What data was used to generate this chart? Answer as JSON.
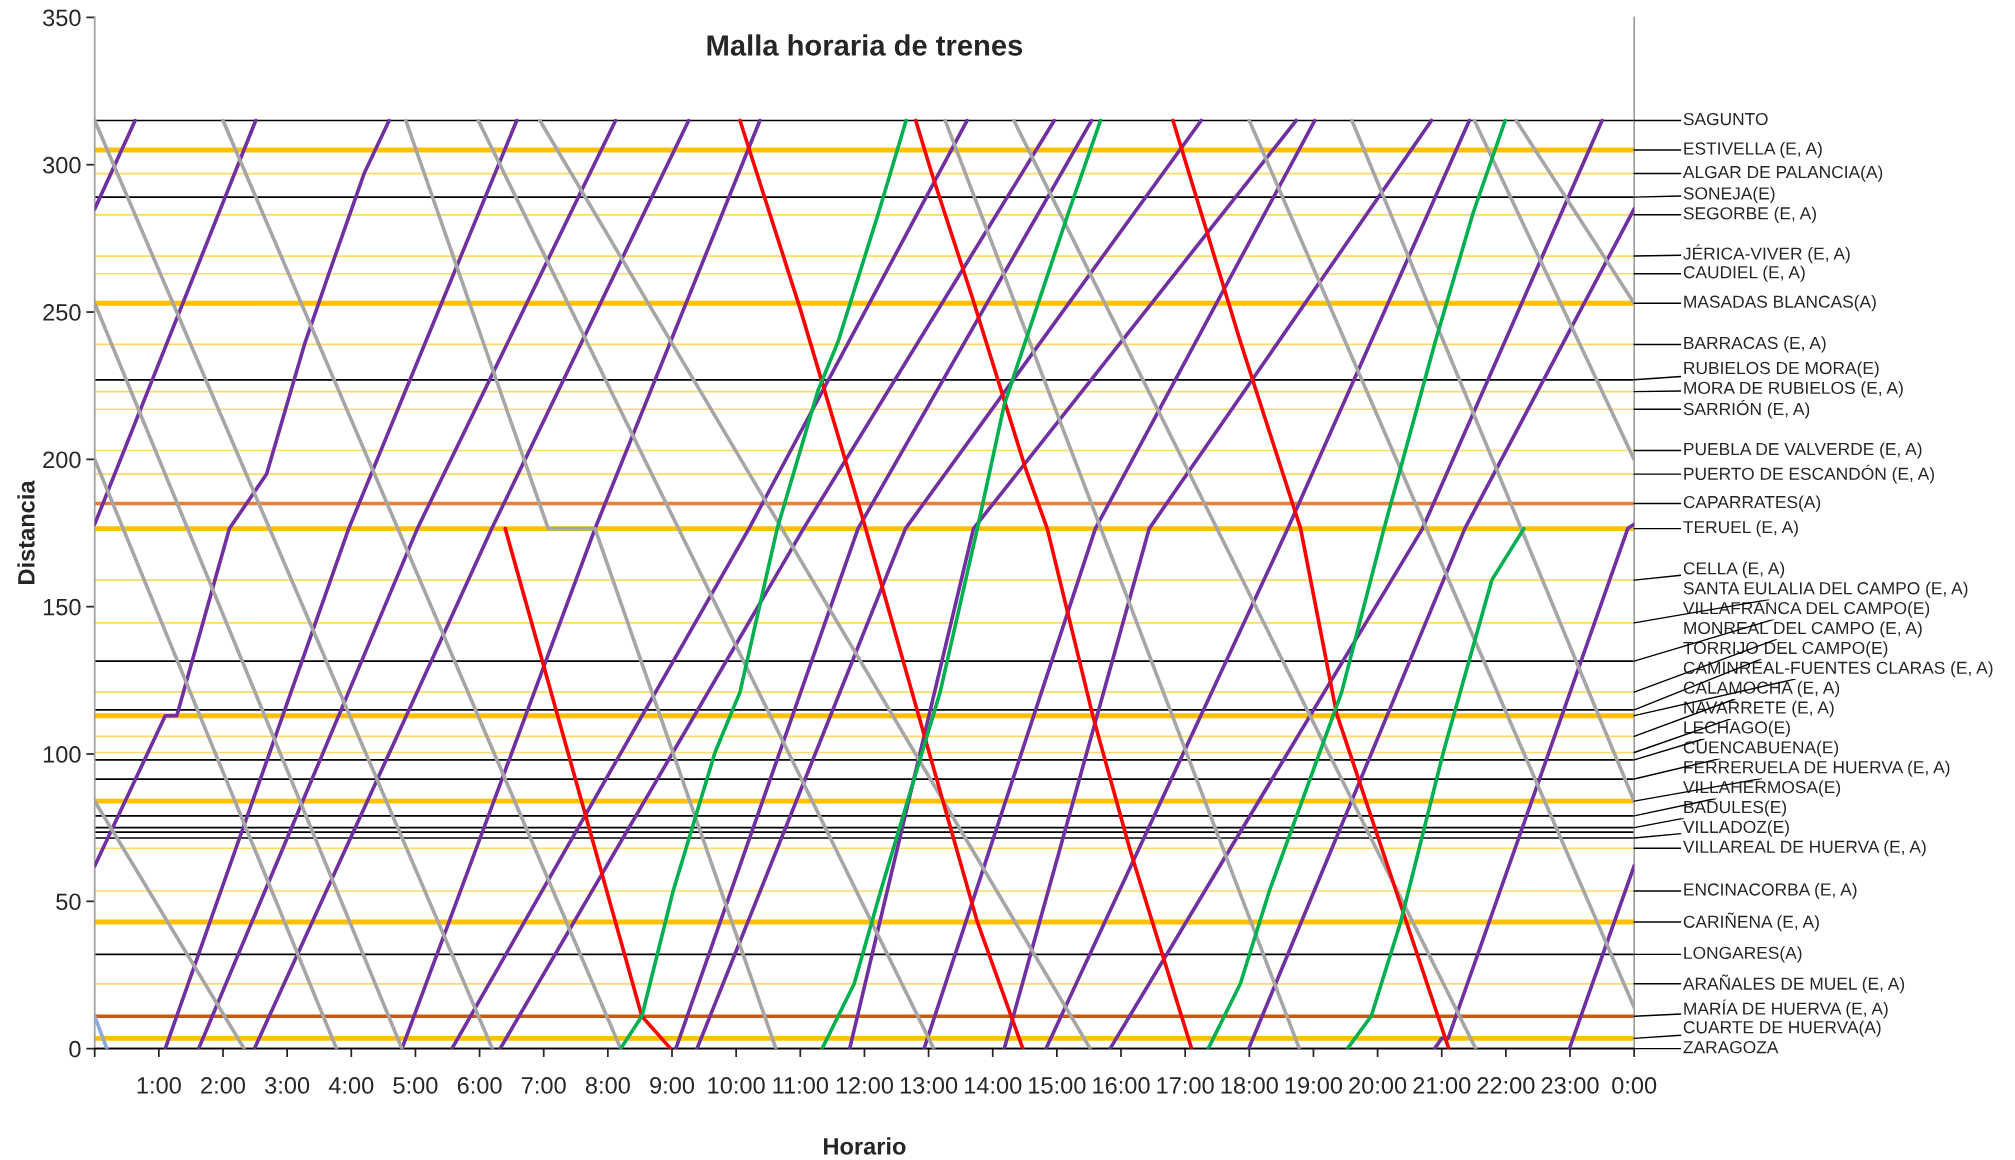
{
  "chart_data": {
    "type": "line",
    "title": "Malla horaria de trenes",
    "xlabel": "Horario",
    "ylabel": "Distancia",
    "xlim": [
      0,
      24
    ],
    "ylim": [
      0,
      350
    ],
    "xticks": [
      {
        "value": 0,
        "label": null
      },
      {
        "value": 1,
        "label": "1:00"
      },
      {
        "value": 2,
        "label": "2:00"
      },
      {
        "value": 3,
        "label": "3:00"
      },
      {
        "value": 4,
        "label": "4:00"
      },
      {
        "value": 5,
        "label": "5:00"
      },
      {
        "value": 6,
        "label": "6:00"
      },
      {
        "value": 7,
        "label": "7:00"
      },
      {
        "value": 8,
        "label": "8:00"
      },
      {
        "value": 9,
        "label": "9:00"
      },
      {
        "value": 10,
        "label": "10:00"
      },
      {
        "value": 11,
        "label": "11:00"
      },
      {
        "value": 12,
        "label": "12:00"
      },
      {
        "value": 13,
        "label": "13:00"
      },
      {
        "value": 14,
        "label": "14:00"
      },
      {
        "value": 15,
        "label": "15:00"
      },
      {
        "value": 16,
        "label": "16:00"
      },
      {
        "value": 17,
        "label": "17:00"
      },
      {
        "value": 18,
        "label": "18:00"
      },
      {
        "value": 19,
        "label": "19:00"
      },
      {
        "value": 20,
        "label": "20:00"
      },
      {
        "value": 21,
        "label": "21:00"
      },
      {
        "value": 22,
        "label": "22:00"
      },
      {
        "value": 23,
        "label": "23:00"
      },
      {
        "value": 24,
        "label": "0:00"
      }
    ],
    "yticks": [
      0,
      50,
      100,
      150,
      200,
      250,
      300,
      350
    ],
    "grid": false,
    "legend": false,
    "marker": "none",
    "line_style": "solid",
    "series": [
      {
        "color": "#7030a0",
        "x": [
          0,
          0.63
        ],
        "values": [
          285,
          315
        ]
      },
      {
        "color": "#7030a0",
        "x": [
          0,
          2.51
        ],
        "values": [
          178,
          315
        ]
      },
      {
        "color": "#7030a0",
        "x": [
          0,
          1.1,
          1.28,
          2.1,
          2.68,
          3.27,
          3.65,
          4.2,
          4.59
        ],
        "values": [
          62,
          113,
          113,
          176.5,
          195,
          239,
          263,
          297,
          315
        ]
      },
      {
        "color": "#7030a0",
        "x": [
          1.1,
          3.96,
          6.58
        ],
        "values": [
          0,
          176.5,
          315
        ]
      },
      {
        "color": "#7030a0",
        "x": [
          1.62,
          5.03,
          8.12
        ],
        "values": [
          0,
          176.5,
          315
        ]
      },
      {
        "color": "#7030a0",
        "x": [
          2.49,
          6.19,
          9.26
        ],
        "values": [
          0,
          176.5,
          315
        ]
      },
      {
        "color": "#7030a0",
        "x": [
          4.79,
          7.8,
          10.37
        ],
        "values": [
          0,
          176.5,
          315
        ]
      },
      {
        "color": "#7030a0",
        "x": [
          5.57,
          10.2,
          13.6
        ],
        "values": [
          0,
          176.5,
          315
        ]
      },
      {
        "color": "#7030a0",
        "x": [
          6.32,
          11.05,
          14.96
        ],
        "values": [
          0,
          176.5,
          315
        ]
      },
      {
        "color": "#7030a0",
        "x": [
          9.06,
          11.9,
          15.54
        ],
        "values": [
          0,
          176.5,
          315
        ]
      },
      {
        "color": "#7030a0",
        "x": [
          9.39,
          12.64,
          17.25
        ],
        "values": [
          0,
          176.5,
          315
        ]
      },
      {
        "color": "#7030a0",
        "x": [
          11.77,
          13.7,
          18.73
        ],
        "values": [
          0,
          176.5,
          315
        ]
      },
      {
        "color": "#7030a0",
        "x": [
          12.93,
          15.6,
          19.02
        ],
        "values": [
          0,
          176.5,
          315
        ]
      },
      {
        "color": "#7030a0",
        "x": [
          14.18,
          16.44,
          20.84
        ],
        "values": [
          0,
          176.5,
          315
        ]
      },
      {
        "color": "#7030a0",
        "x": [
          14.83,
          18.6,
          21.43
        ],
        "values": [
          0,
          176.5,
          315
        ]
      },
      {
        "color": "#7030a0",
        "x": [
          15.83,
          20.7,
          23.5
        ],
        "values": [
          0,
          176.5,
          315
        ]
      },
      {
        "color": "#7030a0",
        "x": [
          17.99,
          21.36,
          24
        ],
        "values": [
          0,
          176.5,
          285
        ]
      },
      {
        "color": "#7030a0",
        "x": [
          20.89,
          21.0,
          21.1,
          23.9,
          24
        ],
        "values": [
          0,
          3.5,
          3.5,
          176.5,
          178
        ]
      },
      {
        "color": "#7030a0",
        "x": [
          22.99,
          24
        ],
        "values": [
          0,
          62
        ]
      },
      {
        "color": "#a6a6a6",
        "x": [
          0,
          2.33
        ],
        "values": [
          84,
          0
        ]
      },
      {
        "color": "#a6a6a6",
        "x": [
          0,
          3.77
        ],
        "values": [
          200,
          0
        ]
      },
      {
        "color": "#a6a6a6",
        "x": [
          0,
          4.79
        ],
        "values": [
          253,
          0
        ]
      },
      {
        "color": "#a6a6a6",
        "x": [
          0,
          6.2
        ],
        "values": [
          315,
          0
        ]
      },
      {
        "color": "#a6a6a6",
        "x": [
          2.0,
          8.2
        ],
        "values": [
          315,
          0
        ]
      },
      {
        "color": "#a6a6a6",
        "x": [
          4.85,
          7.07,
          7.8,
          10.62
        ],
        "values": [
          315,
          176.5,
          176.5,
          0
        ]
      },
      {
        "color": "#a6a6a6",
        "x": [
          5.98,
          13.08
        ],
        "values": [
          315,
          0
        ]
      },
      {
        "color": "#a6a6a6",
        "x": [
          6.94,
          15.52
        ],
        "values": [
          315,
          0
        ]
      },
      {
        "color": "#a6a6a6",
        "x": [
          13.26,
          18.78
        ],
        "values": [
          315,
          0
        ]
      },
      {
        "color": "#a6a6a6",
        "x": [
          14.33,
          21.53
        ],
        "values": [
          315,
          0
        ]
      },
      {
        "color": "#a6a6a6",
        "x": [
          18.0,
          24
        ],
        "values": [
          315,
          14
        ]
      },
      {
        "color": "#a6a6a6",
        "x": [
          19.6,
          24
        ],
        "values": [
          315,
          84
        ]
      },
      {
        "color": "#a6a6a6",
        "x": [
          21.51,
          24
        ],
        "values": [
          315,
          200
        ]
      },
      {
        "color": "#a6a6a6",
        "x": [
          22.16,
          24
        ],
        "values": [
          315,
          253
        ]
      },
      {
        "color": "#8eaadb",
        "x": [
          0,
          0.19
        ],
        "values": [
          11,
          0
        ]
      },
      {
        "color": "#ff0000",
        "x": [
          6.4,
          8.53,
          8.98
        ],
        "values": [
          176.5,
          11,
          0
        ]
      },
      {
        "color": "#ff0000",
        "x": [
          10.06,
          11.0,
          12.0,
          12.93,
          13.76,
          14.47
        ],
        "values": [
          315,
          251,
          178,
          106.5,
          43,
          0
        ]
      },
      {
        "color": "#ff0000",
        "x": [
          12.8,
          13.05,
          13.68,
          14.51,
          14.85,
          15.56,
          16.14,
          17.1
        ],
        "values": [
          315,
          297,
          255,
          197,
          176.5,
          113,
          67.5,
          0
        ]
      },
      {
        "color": "#ff0000",
        "x": [
          16.81,
          17.86,
          18.8,
          19.36,
          20.28,
          21.11
        ],
        "values": [
          315,
          240,
          176.5,
          113.8,
          54,
          0
        ]
      },
      {
        "color": "#00b050",
        "x": [
          8.2,
          8.53,
          9.02,
          9.67,
          10.06,
          10.64,
          11.28,
          11.59,
          12.22,
          12.65
        ],
        "values": [
          0,
          11,
          53.7,
          100.5,
          121,
          176.5,
          223.6,
          240,
          283.7,
          315
        ]
      },
      {
        "color": "#00b050",
        "x": [
          11.34,
          11.84,
          12.26,
          13.18,
          13.76,
          14.18,
          15.18,
          15.68
        ],
        "values": [
          0,
          22,
          54,
          121,
          176.5,
          218.6,
          283.7,
          315
        ]
      },
      {
        "color": "#00b050",
        "x": [
          17.36,
          17.86,
          18.32,
          19.44,
          20.1,
          20.9,
          21.49,
          21.99
        ],
        "values": [
          0,
          22,
          54,
          121,
          176.5,
          240,
          283.7,
          315
        ]
      },
      {
        "color": "#00b050",
        "x": [
          19.53,
          19.9,
          20.36,
          21.03,
          21.78,
          22.28
        ],
        "values": [
          0,
          11,
          43,
          101,
          159,
          176.5
        ]
      }
    ],
    "ref_lines": [
      {
        "axis": "y",
        "value": 315,
        "label": "SAGUNTO",
        "color": "#000000"
      },
      {
        "axis": "y",
        "value": 305,
        "label": "ESTIVELLA (E, A)",
        "color": "#ffc000"
      },
      {
        "axis": "y",
        "value": 297,
        "label": "ALGAR DE PALANCIA(A)",
        "color": "#ffd966"
      },
      {
        "axis": "y",
        "value": 289,
        "label": "SONEJA(E)",
        "color": "#000000"
      },
      {
        "axis": "y",
        "value": 283,
        "label": "SEGORBE (E, A)",
        "color": "#ffd966"
      },
      {
        "axis": "y",
        "value": 269,
        "label": "JÉRICA-VIVER (E, A)",
        "color": "#ffd966"
      },
      {
        "axis": "y",
        "value": 263,
        "label": "CAUDIEL (E, A)",
        "color": "#ffd966"
      },
      {
        "axis": "y",
        "value": 253,
        "label": "MASADAS BLANCAS(A)",
        "color": "#ffc000"
      },
      {
        "axis": "y",
        "value": 239,
        "label": "BARRACAS (E, A)",
        "color": "#ffd966"
      },
      {
        "axis": "y",
        "value": 227,
        "label": "RUBIELOS DE MORA(E)",
        "color": "#000000"
      },
      {
        "axis": "y",
        "value": 223,
        "label": "MORA DE RUBIELOS (E, A)",
        "color": "#ffd966"
      },
      {
        "axis": "y",
        "value": 217,
        "label": "SARRIÓN (E, A)",
        "color": "#ffd966"
      },
      {
        "axis": "y",
        "value": 203,
        "label": "PUEBLA DE VALVERDE (E, A)",
        "color": "#ffd966"
      },
      {
        "axis": "y",
        "value": 195,
        "label": "PUERTO DE ESCANDÓN (E, A)",
        "color": "#ffd966"
      },
      {
        "axis": "y",
        "value": 185,
        "label": "CAPARRATES(A)",
        "color": "#ed7d31"
      },
      {
        "axis": "y",
        "value": 176.5,
        "label": "TERUEL (E, A)",
        "color": "#ffc000"
      },
      {
        "axis": "y",
        "value": 159,
        "label": "CELLA (E, A)",
        "color": "#ffd966"
      },
      {
        "axis": "y",
        "value": 144.5,
        "label": "SANTA EULALIA DEL CAMPO (E, A)",
        "color": "#ffd966"
      },
      {
        "axis": "y",
        "value": 131.5,
        "label": "VILLAFRANCA DEL CAMPO(E)",
        "color": "#000000"
      },
      {
        "axis": "y",
        "value": 121,
        "label": "MONREAL DEL CAMPO (E, A)",
        "color": "#ffd966"
      },
      {
        "axis": "y",
        "value": 115,
        "label": "TORRIJO DEL CAMPO(E)",
        "color": "#000000"
      },
      {
        "axis": "y",
        "value": 113,
        "label": "CAMINREAL-FUENTES CLARAS (E, A)",
        "color": "#ffc000"
      },
      {
        "axis": "y",
        "value": 106,
        "label": "CALAMOCHA (E, A)",
        "color": "#ffd966"
      },
      {
        "axis": "y",
        "value": 100.5,
        "label": "NAVARRETE (E, A)",
        "color": "#ffd966"
      },
      {
        "axis": "y",
        "value": 98,
        "label": "LECHAGO(E)",
        "color": "#000000"
      },
      {
        "axis": "y",
        "value": 91.5,
        "label": "CUENCABUENA(E)",
        "color": "#000000"
      },
      {
        "axis": "y",
        "value": 84,
        "label": "FERRERUELA DE HUERVA (E, A)",
        "color": "#ffc000"
      },
      {
        "axis": "y",
        "value": 79,
        "label": "VILLAHERMOSA(E)",
        "color": "#000000"
      },
      {
        "axis": "y",
        "value": 75,
        "label": "BADULES(E)",
        "color": "#000000"
      },
      {
        "axis": "y",
        "value": 73.5,
        "label": null,
        "color": "#000000"
      },
      {
        "axis": "y",
        "value": 71.5,
        "label": "VILLADOZ(E)",
        "color": "#000000"
      },
      {
        "axis": "y",
        "value": 68,
        "label": "VILLAREAL DE HUERVA (E, A)",
        "color": "#ffd966"
      },
      {
        "axis": "y",
        "value": 53.5,
        "label": "ENCINACORBA (E, A)",
        "color": "#ffd966"
      },
      {
        "axis": "y",
        "value": 43,
        "label": "CARIÑENA (E, A)",
        "color": "#ffc000"
      },
      {
        "axis": "y",
        "value": 32,
        "label": "LONGARES(A)",
        "color": "#000000"
      },
      {
        "axis": "y",
        "value": 22,
        "label": "ARAÑALES DE MUEL (E, A)",
        "color": "#ffd966"
      },
      {
        "axis": "y",
        "value": 11,
        "label": "MARÍA DE HUERVA (E, A)",
        "color": "#c55a11"
      },
      {
        "axis": "y",
        "value": 3.5,
        "label": "CUARTE DE HUERVA(A)",
        "color": "#ffc000"
      },
      {
        "axis": "y",
        "value": 0,
        "label": "ZARAGOZA",
        "color": "#000000"
      }
    ]
  }
}
